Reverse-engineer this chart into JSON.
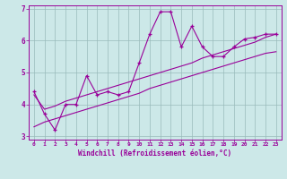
{
  "x": [
    0,
    1,
    2,
    3,
    4,
    5,
    6,
    7,
    8,
    9,
    10,
    11,
    12,
    13,
    14,
    15,
    16,
    17,
    18,
    19,
    20,
    21,
    22,
    23
  ],
  "y_jagged": [
    4.4,
    3.7,
    3.2,
    4.0,
    4.0,
    4.9,
    4.3,
    4.4,
    4.3,
    4.4,
    5.3,
    6.2,
    6.9,
    6.9,
    5.8,
    6.45,
    5.8,
    5.5,
    5.5,
    5.8,
    6.05,
    6.1,
    6.2,
    6.2
  ],
  "y_upper": [
    4.3,
    3.85,
    3.95,
    4.1,
    4.2,
    4.3,
    4.4,
    4.5,
    4.6,
    4.7,
    4.8,
    4.9,
    5.0,
    5.1,
    5.2,
    5.3,
    5.45,
    5.55,
    5.65,
    5.75,
    5.85,
    5.95,
    6.1,
    6.2
  ],
  "y_lower": [
    3.3,
    3.45,
    3.55,
    3.65,
    3.75,
    3.85,
    3.95,
    4.05,
    4.15,
    4.25,
    4.35,
    4.5,
    4.6,
    4.7,
    4.8,
    4.9,
    5.0,
    5.1,
    5.2,
    5.3,
    5.4,
    5.5,
    5.6,
    5.65
  ],
  "line_color": "#990099",
  "bg_color": "#cce8e8",
  "grid_color": "#99bbbb",
  "xlabel": "Windchill (Refroidissement éolien,°C)",
  "xlim": [
    -0.5,
    23.5
  ],
  "ylim": [
    2.9,
    7.1
  ],
  "yticks": [
    3,
    4,
    5,
    6,
    7
  ],
  "xticks": [
    0,
    1,
    2,
    3,
    4,
    5,
    6,
    7,
    8,
    9,
    10,
    11,
    12,
    13,
    14,
    15,
    16,
    17,
    18,
    19,
    20,
    21,
    22,
    23
  ]
}
